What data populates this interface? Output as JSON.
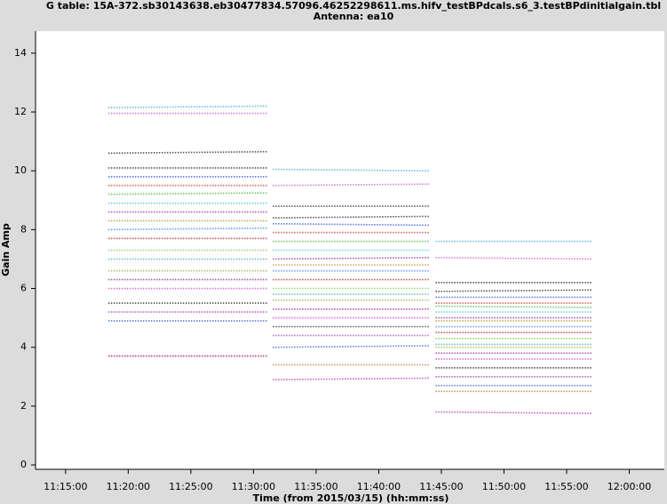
{
  "chart_data": {
    "type": "scatter",
    "title": "G table: 15A-372.sb30143638.eb30477834.57096.46252298611.ms.hifv_testBPdcals.s6_3.testBPdinitialgain.tbl",
    "subtitle": "Antenna: ea10",
    "xlabel": "Time (from 2015/03/15) (hh:mm:ss)",
    "ylabel": "Gain Amp",
    "xlim": [
      "11:12:36",
      "12:02:48"
    ],
    "xticks": [
      "11:15:00",
      "11:20:00",
      "11:25:00",
      "11:30:00",
      "11:35:00",
      "11:40:00",
      "11:45:00",
      "11:50:00",
      "11:55:00",
      "12:00:00"
    ],
    "ylim": [
      -0.15,
      14.75
    ],
    "yticks": [
      0,
      2,
      4,
      6,
      8,
      10,
      12,
      14
    ],
    "x": [
      "11:18:26",
      "11:31:04",
      "11:31:20",
      "11:31:34",
      "11:44:03",
      "11:44:18",
      "11:44:33",
      "11:56:58"
    ],
    "series": [
      {
        "color": "#1f9ec9",
        "values": [
          12.15,
          12.2,
          null,
          10.05,
          10.0,
          null,
          7.6,
          7.6
        ]
      },
      {
        "color": "#c040c0",
        "values": [
          11.95,
          11.95,
          null,
          9.5,
          9.55,
          null,
          7.05,
          7.0
        ]
      },
      {
        "color": "#000000",
        "values": [
          10.6,
          10.65,
          null,
          8.8,
          8.8,
          null,
          6.2,
          6.2
        ]
      },
      {
        "color": "#000000",
        "values": [
          10.1,
          10.1,
          null,
          8.4,
          8.45,
          null,
          5.9,
          5.95
        ]
      },
      {
        "color": "#1030e0",
        "values": [
          9.8,
          9.8,
          null,
          8.2,
          8.15,
          null,
          5.7,
          5.7
        ]
      },
      {
        "color": "#d01010",
        "values": [
          9.5,
          9.5,
          null,
          7.9,
          7.9,
          null,
          5.5,
          5.5
        ]
      },
      {
        "color": "#20b020",
        "values": [
          9.2,
          9.25,
          null,
          7.6,
          7.6,
          null,
          5.4,
          5.35
        ]
      },
      {
        "color": "#10c0d0",
        "values": [
          8.9,
          8.9,
          null,
          7.3,
          7.3,
          null,
          5.2,
          5.2
        ]
      },
      {
        "color": "#800080",
        "values": [
          8.6,
          8.6,
          null,
          7.0,
          7.05,
          null,
          5.0,
          5.0
        ]
      },
      {
        "color": "#a08000",
        "values": [
          8.3,
          8.3,
          null,
          6.8,
          6.8,
          null,
          4.9,
          4.9
        ]
      },
      {
        "color": "#2060ff",
        "values": [
          8.0,
          8.05,
          null,
          6.6,
          6.6,
          null,
          4.7,
          4.7
        ]
      },
      {
        "color": "#b00000",
        "values": [
          7.7,
          7.7,
          null,
          6.3,
          6.3,
          null,
          4.5,
          4.5
        ]
      },
      {
        "color": "#60c030",
        "values": [
          7.3,
          7.3,
          null,
          6.0,
          6.0,
          null,
          4.3,
          4.3
        ]
      },
      {
        "color": "#20a0a0",
        "values": [
          7.0,
          7.0,
          null,
          5.8,
          5.8,
          null,
          4.1,
          4.1
        ]
      },
      {
        "color": "#90a020",
        "values": [
          6.6,
          6.6,
          null,
          5.6,
          5.6,
          null,
          4.0,
          4.0
        ]
      },
      {
        "color": "#700090",
        "values": [
          6.3,
          6.3,
          null,
          5.3,
          5.3,
          null,
          3.8,
          3.8
        ]
      },
      {
        "color": "#d020d0",
        "values": [
          6.0,
          6.0,
          null,
          5.0,
          5.0,
          null,
          3.6,
          3.6
        ]
      },
      {
        "color": "#000000",
        "values": [
          5.5,
          5.5,
          null,
          4.7,
          4.7,
          null,
          3.3,
          3.3
        ]
      },
      {
        "color": "#8020a0",
        "values": [
          5.2,
          5.2,
          null,
          4.4,
          4.4,
          null,
          3.0,
          3.0
        ]
      },
      {
        "color": "#1040c0",
        "values": [
          4.9,
          4.9,
          null,
          4.0,
          4.05,
          null,
          2.7,
          2.7
        ]
      },
      {
        "color": "#a06000",
        "values": [
          3.7,
          3.7,
          null,
          3.4,
          3.4,
          null,
          2.5,
          2.5
        ]
      },
      {
        "color": "#a010a0",
        "values": [
          3.7,
          3.7,
          null,
          2.9,
          2.95,
          null,
          1.8,
          1.75
        ]
      }
    ]
  }
}
